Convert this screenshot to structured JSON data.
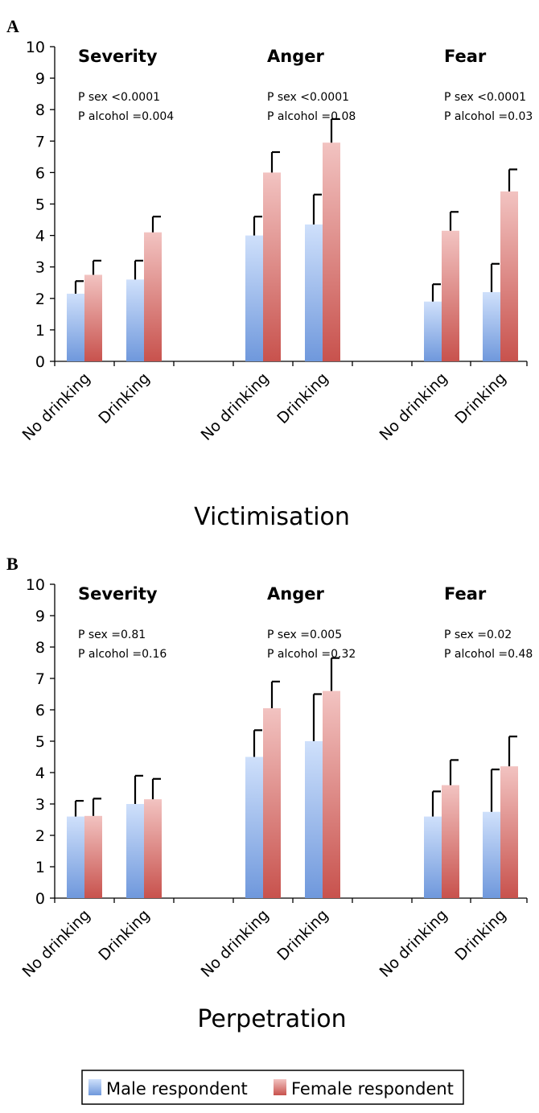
{
  "chart_data": [
    {
      "panel": "A",
      "type": "bar",
      "title": "Victimisation",
      "ylim": [
        0,
        10
      ],
      "yticks": [
        0,
        1,
        2,
        3,
        4,
        5,
        6,
        7,
        8,
        9,
        10
      ],
      "categories": [
        "No drinking",
        "Drinking",
        "No drinking",
        "Drinking",
        "No drinking",
        "Drinking"
      ],
      "groups": [
        {
          "label": "Severity",
          "stats": [
            "P sex <0.0001",
            "P alcohol =0.004"
          ]
        },
        {
          "label": "Anger",
          "stats": [
            "P sex <0.0001",
            "P alcohol =0.08"
          ]
        },
        {
          "label": "Fear",
          "stats": [
            "P sex <0.0001",
            "P alcohol =0.03"
          ]
        }
      ],
      "series": [
        {
          "name": "Male respondent",
          "values": [
            2.15,
            2.6,
            4.0,
            4.35,
            1.9,
            2.2
          ],
          "errors": [
            0.4,
            0.6,
            0.6,
            0.95,
            0.55,
            0.9
          ]
        },
        {
          "name": "Female respondent",
          "values": [
            2.75,
            4.1,
            6.0,
            6.95,
            4.15,
            5.4
          ],
          "errors": [
            0.45,
            0.5,
            0.65,
            0.75,
            0.6,
            0.7
          ]
        }
      ]
    },
    {
      "panel": "B",
      "type": "bar",
      "title": "Perpetration",
      "ylim": [
        0,
        10
      ],
      "yticks": [
        0,
        1,
        2,
        3,
        4,
        5,
        6,
        7,
        8,
        9,
        10
      ],
      "categories": [
        "No drinking",
        "Drinking",
        "No drinking",
        "Drinking",
        "No drinking",
        "Drinking"
      ],
      "groups": [
        {
          "label": "Severity",
          "stats": [
            "P sex =0.81",
            "P alcohol =0.16"
          ]
        },
        {
          "label": "Anger",
          "stats": [
            "P sex =0.005",
            "P alcohol =0.32"
          ]
        },
        {
          "label": "Fear",
          "stats": [
            "P  sex =0.02",
            "P alcohol =0.48"
          ]
        }
      ],
      "series": [
        {
          "name": "Male respondent",
          "values": [
            2.6,
            3.0,
            4.5,
            5.0,
            2.6,
            2.75
          ],
          "errors": [
            0.5,
            0.9,
            0.85,
            1.5,
            0.8,
            1.35
          ]
        },
        {
          "name": "Female respondent",
          "values": [
            2.62,
            3.15,
            6.05,
            6.6,
            3.6,
            4.2
          ],
          "errors": [
            0.55,
            0.65,
            0.85,
            1.05,
            0.8,
            0.95
          ]
        }
      ]
    }
  ],
  "colors": {
    "male_light": "#cfe0fb",
    "male_dark": "#6f98dc",
    "female_light": "#f2c3c1",
    "female_dark": "#c8524d",
    "axis": "#000000"
  },
  "legend": {
    "items": [
      {
        "name": "Male respondent"
      },
      {
        "name": "Female respondent"
      }
    ]
  }
}
